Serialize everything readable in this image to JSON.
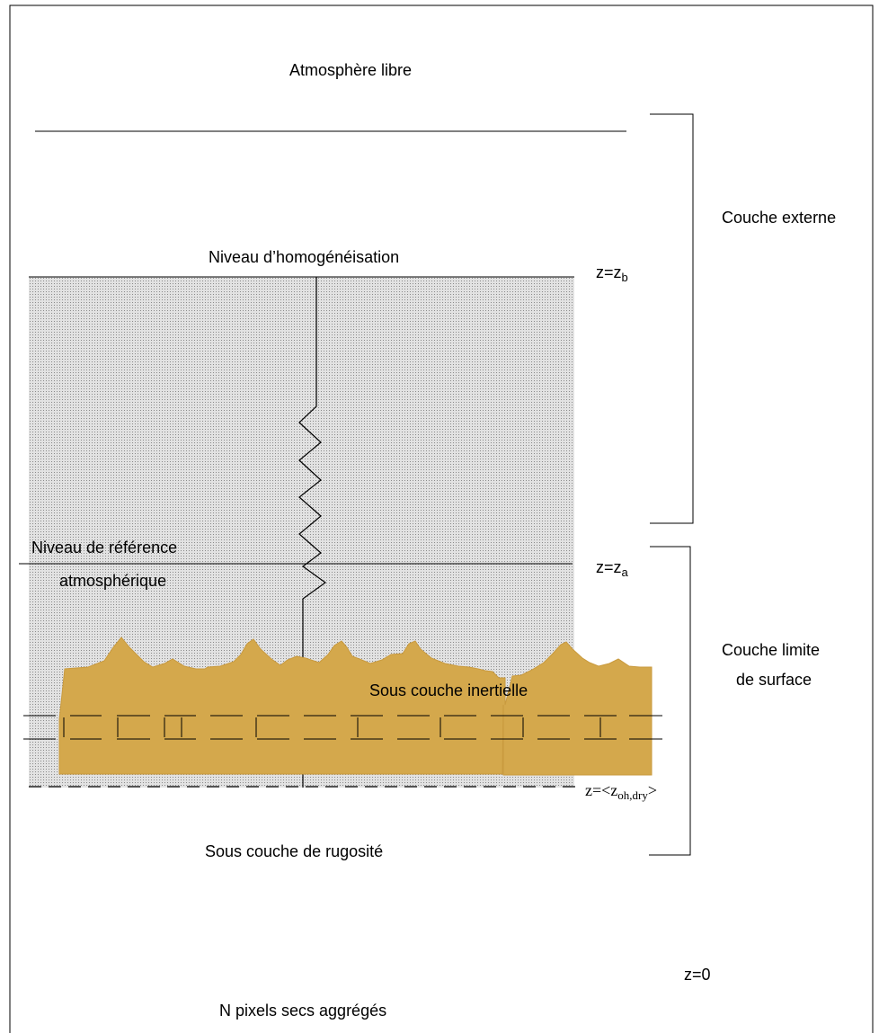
{
  "labels": {
    "free_atmosphere": "Atmosphère libre",
    "blending_level": "Niveau d’homogénéisation",
    "reference_level_line1": "Niveau de référence",
    "reference_level_line2": "atmosphérique",
    "inertial_sublayer": "Sous couche inertielle",
    "roughness_sublayer": "Sous couche de rugosité",
    "outer_layer": "Couche externe",
    "surface_layer_line1": "Couche limite",
    "surface_layer_line2": "de surface",
    "pixels": "N pixels secs aggrégés"
  },
  "levels": {
    "zb_base": "z=z",
    "zb_sub": "b",
    "za_base": "z=z",
    "za_sub": "a",
    "zoh_base": "z=<z",
    "zoh_sub": "oh,dry",
    "zoh_end": ">",
    "z0": "z=0"
  },
  "colors": {
    "stipple_fill": "#dcdcdc",
    "stipple_dot": "#8a8a8a",
    "roughness_fill": "#d4a84c",
    "line": "#000000"
  }
}
